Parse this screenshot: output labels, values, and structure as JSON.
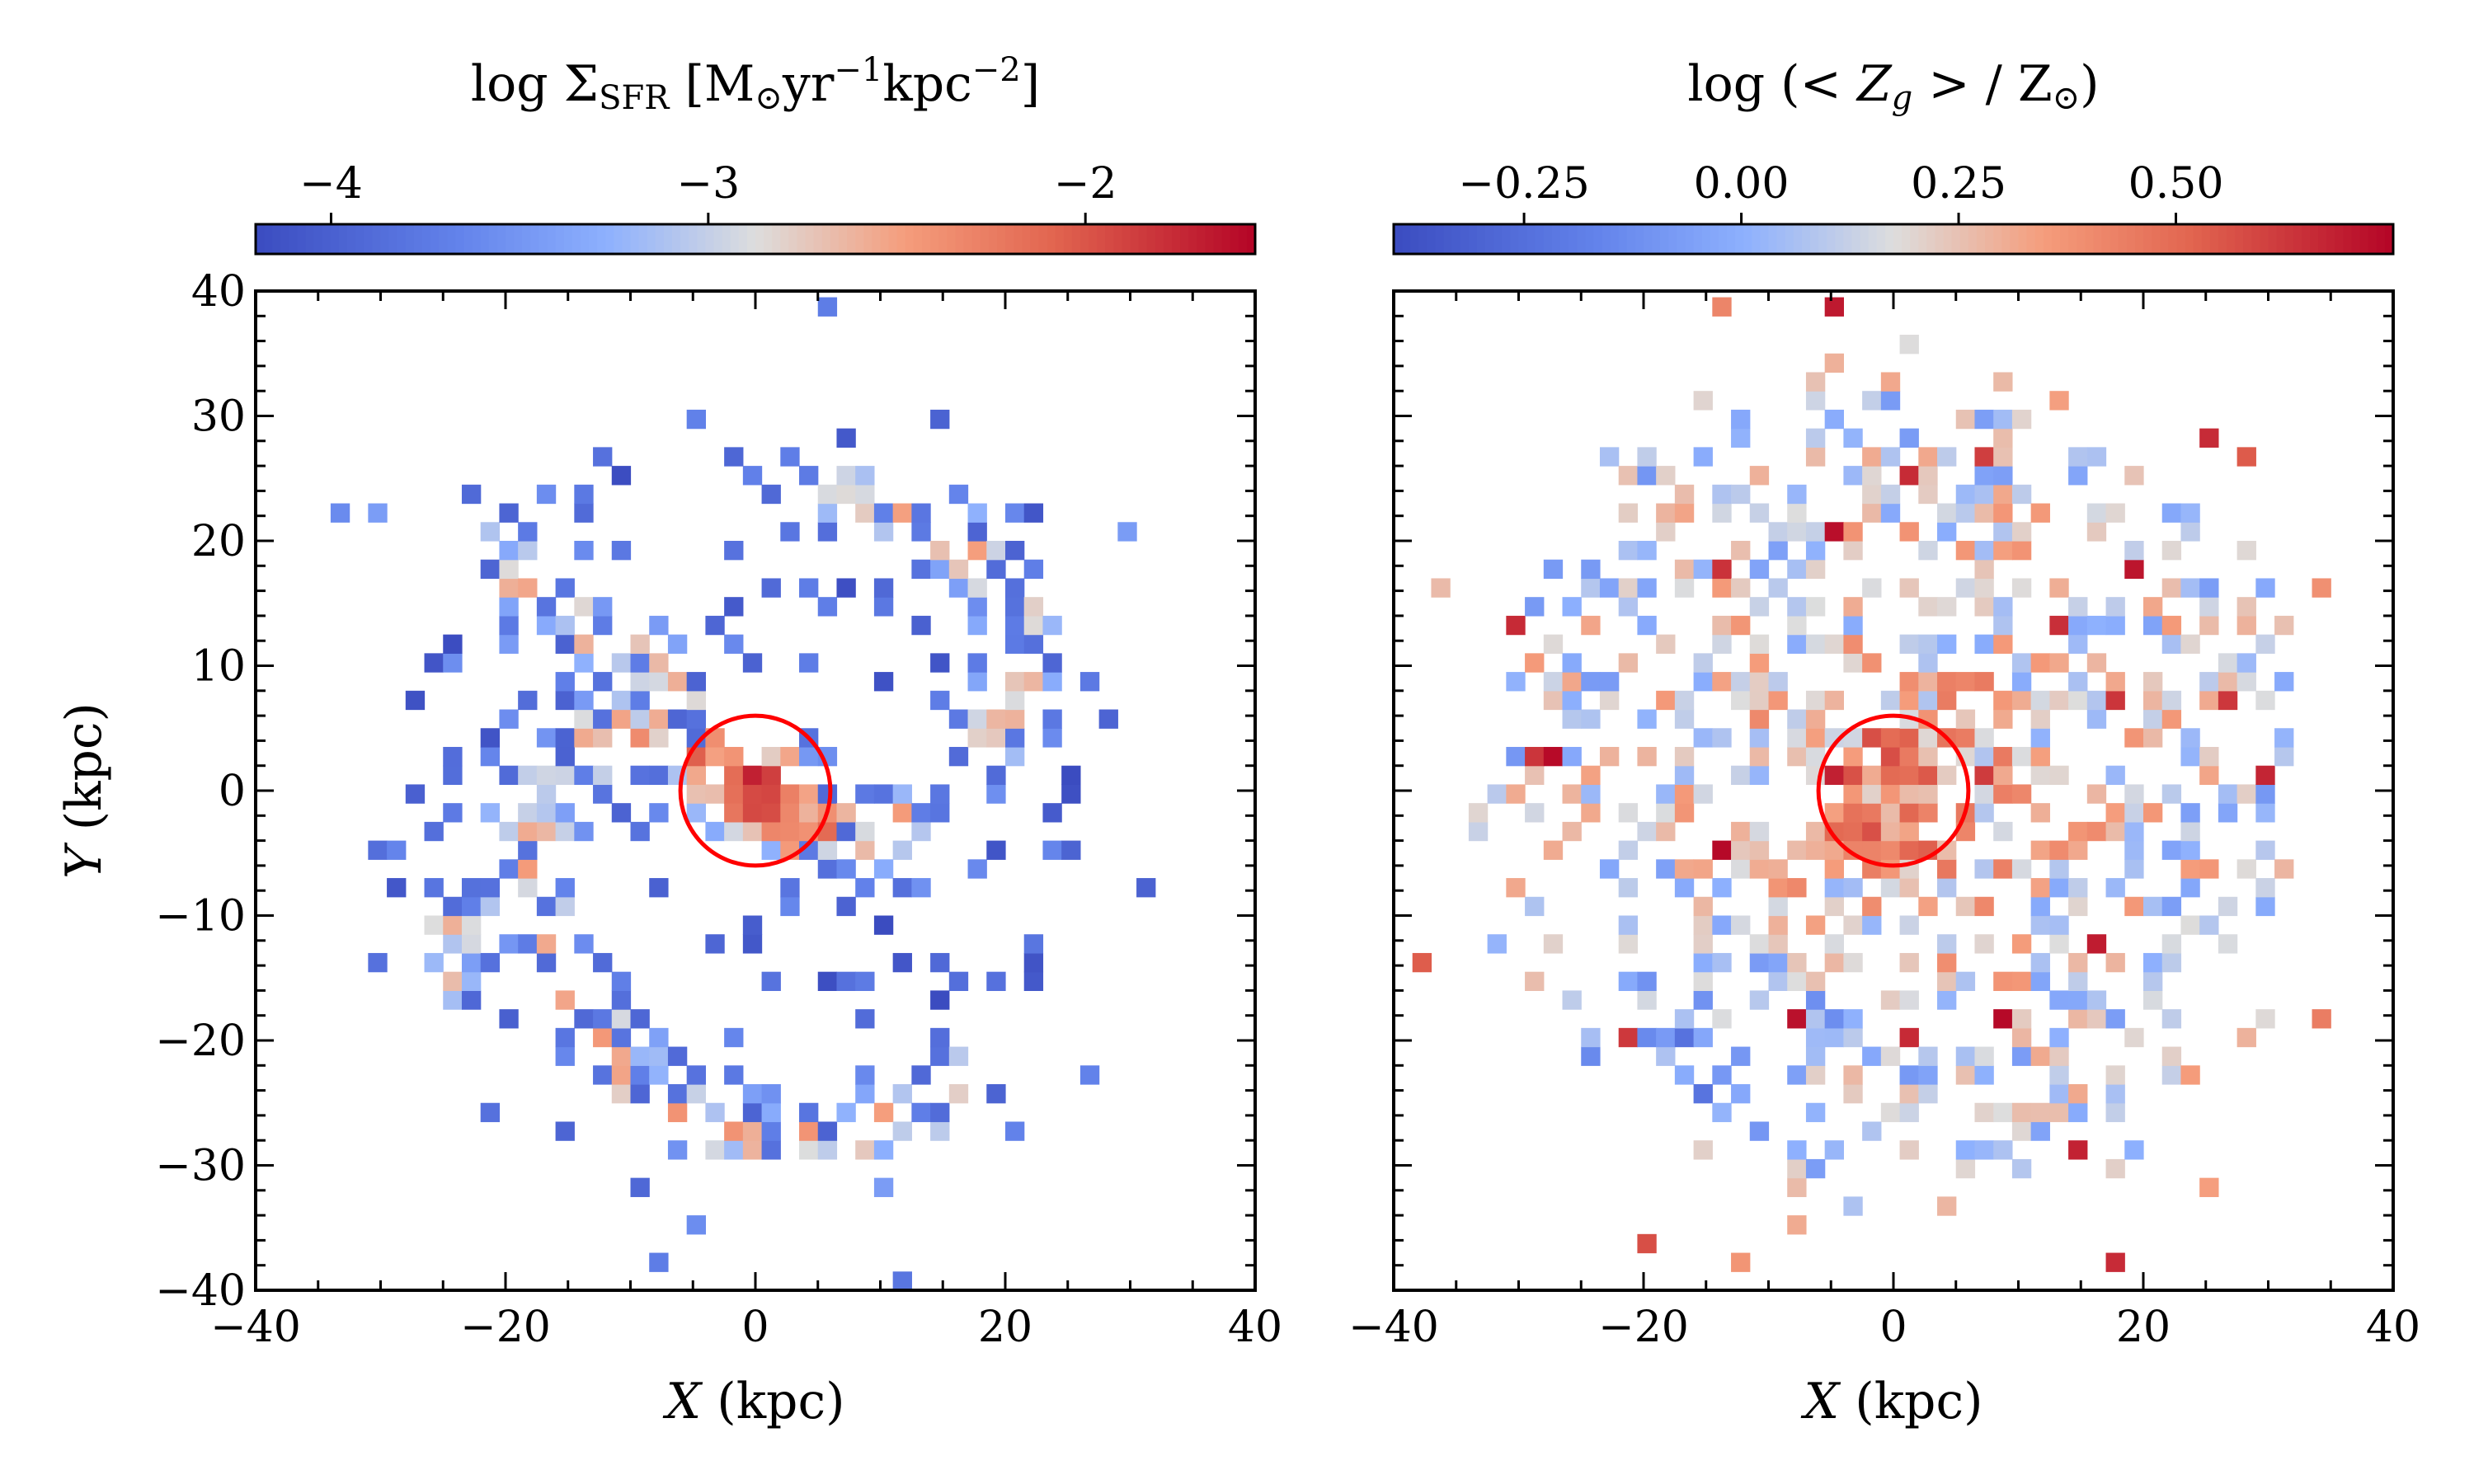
{
  "figure": {
    "panels": [
      {
        "id": "sfr",
        "colorbar_label_parts": [
          "log Σ",
          "SFR",
          " [M",
          "⊙",
          "yr",
          "−1",
          "kpc",
          "−2",
          "]"
        ],
        "colorbar": {
          "colormap": "coolwarm",
          "range": [
            -4.2,
            -1.55
          ],
          "ticks": [
            -4,
            -3,
            -2
          ],
          "tick_labels": [
            "−4",
            "−3",
            "−2"
          ]
        },
        "xlabel_var": "X",
        "xlabel_unit": " (kpc)",
        "ylabel_var": "Y",
        "ylabel_unit": " (kpc)",
        "show_y_tick_labels": true
      },
      {
        "id": "metallicity",
        "colorbar_label_parts": [
          "log (< ",
          "Z",
          "g",
          " > / Z",
          "⊙",
          ")"
        ],
        "colorbar": {
          "colormap": "coolwarm",
          "range": [
            -0.4,
            0.75
          ],
          "ticks": [
            -0.25,
            0.0,
            0.25,
            0.5
          ],
          "tick_labels": [
            "−0.25",
            "0.00",
            "0.25",
            "0.50"
          ]
        },
        "xlabel_var": "X",
        "xlabel_unit": " (kpc)",
        "show_y_tick_labels": false
      }
    ],
    "colors": {
      "circle": "#ff0000",
      "cmap_low": "#3b4cc0",
      "cmap_mid": "#dddddd",
      "cmap_high": "#b40426"
    }
  },
  "chart_data": [
    {
      "type": "heatmap",
      "description": "Star formation rate surface density map",
      "xlabel": "X (kpc)",
      "ylabel": "Y (kpc)",
      "xlim": [
        -40,
        40
      ],
      "ylim": [
        -40,
        40
      ],
      "x_ticks": [
        -40,
        -20,
        0,
        20,
        40
      ],
      "y_ticks": [
        -40,
        -30,
        -20,
        -10,
        0,
        10,
        20,
        30,
        40
      ],
      "colorbar_range": [
        -4.2,
        -1.55
      ],
      "center_circle": {
        "x": 0,
        "y": 0,
        "r": 6
      },
      "structures": {
        "nucleus": {
          "x": 0,
          "y": 0,
          "radius": 6,
          "peak_value": -1.7
        },
        "disk_extent_kpc": 33,
        "background_value": -3.9,
        "spiral_arms": [
          {
            "value": -2.7,
            "points": [
              [
                5,
                -4
              ],
              [
                13,
                -2
              ],
              [
                19,
                3
              ],
              [
                22,
                10
              ],
              [
                20,
                17
              ],
              [
                14,
                22
              ],
              [
                6,
                24
              ]
            ]
          },
          {
            "value": -2.7,
            "points": [
              [
                -5,
                4
              ],
              [
                -12,
                5
              ],
              [
                -17,
                0
              ],
              [
                -18,
                -8
              ],
              [
                -15,
                -17
              ],
              [
                -9,
                -24
              ],
              [
                0,
                -28
              ],
              [
                10,
                -27
              ],
              [
                19,
                -23
              ]
            ]
          },
          {
            "value": -2.8,
            "points": [
              [
                -6,
                9
              ],
              [
                -14,
                13
              ],
              [
                -21,
                18
              ],
              [
                -24,
                24
              ]
            ]
          },
          {
            "value": -2.9,
            "points": [
              [
                -20,
                -4
              ],
              [
                -24,
                -9
              ],
              [
                -25,
                -15
              ]
            ]
          }
        ]
      }
    },
    {
      "type": "heatmap",
      "description": "Gas metallicity map",
      "xlabel": "X (kpc)",
      "xlim": [
        -40,
        40
      ],
      "ylim": [
        -40,
        40
      ],
      "x_ticks": [
        -40,
        -20,
        0,
        20,
        40
      ],
      "colorbar_range": [
        -0.4,
        0.75
      ],
      "center_circle": {
        "x": 0,
        "y": 0,
        "r": 6
      },
      "structures": {
        "nucleus": {
          "x": 0,
          "y": 0,
          "radius": 6,
          "peak_value": 0.5
        },
        "disk_extent_kpc": 35,
        "inner_value": 0.38,
        "outer_value": 0.1,
        "low_metallicity_region": {
          "x": -14,
          "y": -20,
          "value": -0.1
        }
      }
    }
  ]
}
